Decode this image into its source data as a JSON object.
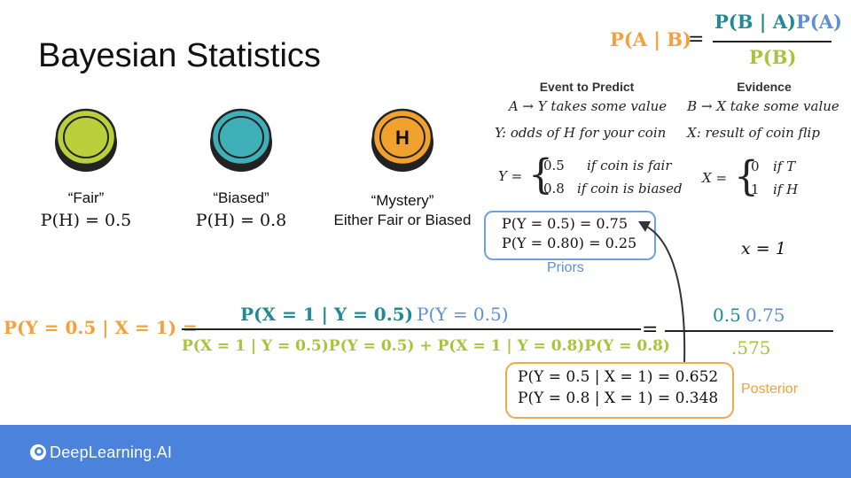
{
  "slide": {
    "title": "Bayesian Statistics",
    "bayes_rule": {
      "lhs": "P(A | B)",
      "eq": "=",
      "num_1": "P(B | A)",
      "num_2": "P(A)",
      "den": "P(B)"
    },
    "coins": [
      {
        "label": "“Fair”",
        "prob": "P(H) = 0.5",
        "symbol": "",
        "color": "#b9cf3b"
      },
      {
        "label": "“Biased”",
        "prob": "P(H) = 0.8",
        "symbol": "",
        "color": "#3fb0b8"
      },
      {
        "label": "“Mystery”",
        "prob": "Either Fair or Biased",
        "symbol": "H",
        "color": "#f1a12e"
      }
    ],
    "event": {
      "header": "Event to Predict",
      "line1": "A → Y takes some value",
      "line2": "Y: odds of H for your coin",
      "lhs": "Y =",
      "case1_val": "0.5",
      "case1_cond": "if coin is fair",
      "case2_val": "0.8",
      "case2_cond": "if coin is biased"
    },
    "evidence": {
      "header": "Evidence",
      "line1": "B → X take some value",
      "line2": "X: result of coin flip",
      "lhs": "X =",
      "case1_val": "0",
      "case1_cond": "if T",
      "case2_val": "1",
      "case2_cond": "if H",
      "observed": "x = 1"
    },
    "priors": {
      "line1": "P(Y = 0.5) = 0.75",
      "line2": "P(Y = 0.80) = 0.25",
      "label": "Priors"
    },
    "main_eq": {
      "lhs": "P(Y = 0.5 | X = 1) =",
      "num_likelihood": "P(X = 1 | Y = 0.5)",
      "num_prior": "P(Y = 0.5)",
      "denominator": "P(X = 1 | Y = 0.5)P(Y = 0.5) + P(X = 1 | Y = 0.8)P(Y = 0.8)",
      "eq2": "=",
      "rhs_num_a": "0.5",
      "rhs_num_b": "0.75",
      "rhs_den": ".575"
    },
    "posterior": {
      "line1": "P(Y = 0.5 | X = 1) = 0.652",
      "line2": "P(Y = 0.8 | X = 1) = 0.348",
      "label": "Posterior"
    },
    "footer": {
      "brand": "DeepLearning.AI",
      "logo_icon": "deeplearning-logo-icon",
      "color": "#4a82dc"
    }
  }
}
